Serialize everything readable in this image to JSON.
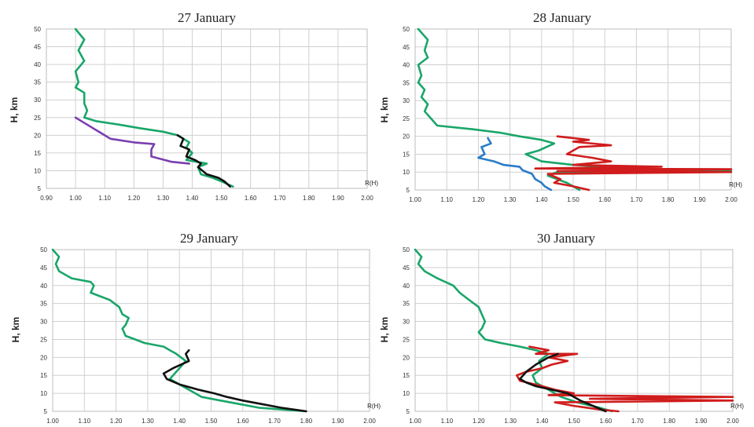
{
  "chart_data": [
    {
      "type": "line",
      "title": "27 January",
      "ylabel": "H, km",
      "xlabel": "R(H)",
      "xlim": [
        0.9,
        2.0
      ],
      "ylim": [
        5,
        50
      ],
      "xticks": [
        "0.90",
        "1.00",
        "1.10",
        "1.20",
        "1.30",
        "1.40",
        "1.50",
        "1.60",
        "1.70",
        "1.80",
        "1.90",
        "2.00"
      ],
      "yticks": [
        "5",
        "10",
        "15",
        "20",
        "25",
        "30",
        "35",
        "40",
        "45",
        "50"
      ],
      "grid": true,
      "series": [
        {
          "color": "#1aa66a",
          "points": [
            [
              1.0,
              50
            ],
            [
              1.03,
              47
            ],
            [
              1.01,
              44
            ],
            [
              1.03,
              41
            ],
            [
              1.0,
              38
            ],
            [
              1.01,
              35
            ],
            [
              1.0,
              33.5
            ],
            [
              1.03,
              32
            ],
            [
              1.03,
              29
            ],
            [
              1.04,
              27
            ],
            [
              1.03,
              25
            ],
            [
              1.07,
              24
            ],
            [
              1.15,
              23
            ],
            [
              1.22,
              22
            ],
            [
              1.3,
              21
            ],
            [
              1.35,
              20
            ],
            [
              1.39,
              18
            ],
            [
              1.38,
              16.5
            ],
            [
              1.4,
              15
            ],
            [
              1.38,
              13
            ],
            [
              1.45,
              12
            ],
            [
              1.42,
              11
            ],
            [
              1.43,
              9
            ],
            [
              1.47,
              8
            ],
            [
              1.5,
              7
            ],
            [
              1.54,
              5.5
            ]
          ]
        },
        {
          "color": "#7a3fae",
          "points": [
            [
              1.0,
              25
            ],
            [
              1.06,
              22
            ],
            [
              1.12,
              19
            ],
            [
              1.2,
              18
            ],
            [
              1.27,
              17.5
            ],
            [
              1.26,
              16
            ],
            [
              1.26,
              14
            ],
            [
              1.33,
              12.5
            ],
            [
              1.39,
              12
            ]
          ]
        },
        {
          "color": "#111111",
          "points": [
            [
              1.35,
              20
            ],
            [
              1.37,
              19
            ],
            [
              1.36,
              17
            ],
            [
              1.39,
              16
            ],
            [
              1.38,
              14
            ],
            [
              1.41,
              13
            ],
            [
              1.43,
              12
            ],
            [
              1.42,
              11
            ],
            [
              1.45,
              9
            ],
            [
              1.49,
              8
            ],
            [
              1.51,
              7
            ],
            [
              1.53,
              5.5
            ]
          ]
        }
      ]
    },
    {
      "type": "line",
      "title": "28 January",
      "ylabel": "H, km",
      "xlabel": "R(H)",
      "xlim": [
        1.0,
        2.0
      ],
      "ylim": [
        5,
        50
      ],
      "xticks": [
        "1.00",
        "1.10",
        "1.20",
        "1.30",
        "1.40",
        "1.50",
        "1.60",
        "1.70",
        "1.80",
        "1.90",
        "2.00"
      ],
      "yticks": [
        "5",
        "10",
        "15",
        "20",
        "25",
        "30",
        "35",
        "40",
        "45",
        "50"
      ],
      "grid": true,
      "series": [
        {
          "color": "#1aa66a",
          "points": [
            [
              1.01,
              50
            ],
            [
              1.04,
              47
            ],
            [
              1.03,
              44
            ],
            [
              1.04,
              42
            ],
            [
              1.01,
              40
            ],
            [
              1.02,
              37
            ],
            [
              1.01,
              35
            ],
            [
              1.03,
              33
            ],
            [
              1.02,
              31
            ],
            [
              1.04,
              29
            ],
            [
              1.03,
              27
            ],
            [
              1.05,
              25
            ],
            [
              1.07,
              23
            ],
            [
              1.18,
              22
            ],
            [
              1.27,
              21
            ],
            [
              1.33,
              20
            ],
            [
              1.4,
              19
            ],
            [
              1.44,
              18
            ],
            [
              1.39,
              16
            ],
            [
              1.35,
              15
            ],
            [
              1.4,
              13
            ],
            [
              1.5,
              12
            ],
            [
              1.7,
              11
            ],
            [
              2.0,
              10.5
            ],
            [
              1.45,
              10
            ],
            [
              1.42,
              9
            ],
            [
              1.48,
              7
            ],
            [
              1.52,
              5
            ]
          ]
        },
        {
          "color": "#d01c1c",
          "points": [
            [
              1.45,
              20
            ],
            [
              1.55,
              19
            ],
            [
              1.5,
              18.5
            ],
            [
              1.62,
              17.5
            ],
            [
              1.52,
              17
            ],
            [
              1.48,
              15
            ],
            [
              1.56,
              14
            ],
            [
              1.62,
              13
            ],
            [
              1.5,
              12
            ],
            [
              1.78,
              11.5
            ],
            [
              1.38,
              11
            ],
            [
              2.0,
              10.8
            ],
            [
              1.45,
              10.3
            ],
            [
              2.0,
              10
            ],
            [
              1.42,
              9.5
            ],
            [
              1.46,
              8
            ],
            [
              1.44,
              7
            ],
            [
              1.5,
              6
            ],
            [
              1.55,
              5
            ]
          ]
        },
        {
          "color": "#2a7cc7",
          "points": [
            [
              1.23,
              19.5
            ],
            [
              1.24,
              18
            ],
            [
              1.21,
              17
            ],
            [
              1.22,
              15
            ],
            [
              1.2,
              14
            ],
            [
              1.25,
              13
            ],
            [
              1.28,
              12
            ],
            [
              1.33,
              11.5
            ],
            [
              1.34,
              10.5
            ],
            [
              1.37,
              9.5
            ],
            [
              1.38,
              8
            ],
            [
              1.4,
              7
            ],
            [
              1.41,
              6
            ],
            [
              1.43,
              5
            ]
          ]
        }
      ]
    },
    {
      "type": "line",
      "title": "29 January",
      "ylabel": "H, km",
      "xlabel": "R(H)",
      "xlim": [
        1.0,
        2.0
      ],
      "ylim": [
        5,
        50
      ],
      "xticks": [
        "1.00",
        "1.10",
        "1.20",
        "1.30",
        "1.40",
        "1.50",
        "1.60",
        "1.70",
        "1.80",
        "1.90",
        "2.00"
      ],
      "yticks": [
        "5",
        "10",
        "15",
        "20",
        "25",
        "30",
        "35",
        "40",
        "45",
        "50"
      ],
      "grid": true,
      "series": [
        {
          "color": "#1aa66a",
          "points": [
            [
              1.0,
              50
            ],
            [
              1.02,
              48
            ],
            [
              1.01,
              46
            ],
            [
              1.02,
              44
            ],
            [
              1.06,
              42
            ],
            [
              1.12,
              41
            ],
            [
              1.13,
              40
            ],
            [
              1.12,
              38
            ],
            [
              1.15,
              37
            ],
            [
              1.18,
              36
            ],
            [
              1.21,
              34
            ],
            [
              1.22,
              32
            ],
            [
              1.24,
              31
            ],
            [
              1.23,
              29
            ],
            [
              1.22,
              28
            ],
            [
              1.23,
              26
            ],
            [
              1.26,
              25
            ],
            [
              1.29,
              24
            ],
            [
              1.35,
              23
            ],
            [
              1.37,
              22
            ],
            [
              1.39,
              21
            ],
            [
              1.42,
              19
            ],
            [
              1.4,
              17
            ],
            [
              1.38,
              15
            ],
            [
              1.37,
              14
            ],
            [
              1.4,
              12.5
            ],
            [
              1.43,
              11
            ],
            [
              1.47,
              9
            ],
            [
              1.53,
              8
            ],
            [
              1.59,
              7
            ],
            [
              1.65,
              6
            ],
            [
              1.8,
              5
            ]
          ]
        },
        {
          "color": "#111111",
          "points": [
            [
              1.43,
              22
            ],
            [
              1.42,
              21
            ],
            [
              1.43,
              19
            ],
            [
              1.38,
              17
            ],
            [
              1.35,
              15.5
            ],
            [
              1.36,
              14
            ],
            [
              1.4,
              12.5
            ],
            [
              1.42,
              12
            ],
            [
              1.46,
              11
            ],
            [
              1.51,
              10
            ],
            [
              1.55,
              9
            ],
            [
              1.6,
              8
            ],
            [
              1.66,
              7
            ],
            [
              1.72,
              6
            ],
            [
              1.8,
              5
            ]
          ]
        }
      ]
    },
    {
      "type": "line",
      "title": "30 January",
      "ylabel": "H, km",
      "xlabel": "R(H)",
      "xlim": [
        1.0,
        2.0
      ],
      "ylim": [
        5,
        50
      ],
      "xticks": [
        "1.00",
        "1.10",
        "1.20",
        "1.30",
        "1.40",
        "1.50",
        "1.60",
        "1.70",
        "1.80",
        "1.90",
        "2.00"
      ],
      "yticks": [
        "5",
        "10",
        "15",
        "20",
        "25",
        "30",
        "35",
        "40",
        "45",
        "50"
      ],
      "grid": true,
      "series": [
        {
          "color": "#1aa66a",
          "points": [
            [
              1.0,
              50
            ],
            [
              1.02,
              48
            ],
            [
              1.01,
              46
            ],
            [
              1.03,
              44
            ],
            [
              1.07,
              42
            ],
            [
              1.12,
              40
            ],
            [
              1.14,
              38
            ],
            [
              1.17,
              36
            ],
            [
              1.2,
              34
            ],
            [
              1.21,
              32
            ],
            [
              1.22,
              30
            ],
            [
              1.21,
              28
            ],
            [
              1.2,
              27
            ],
            [
              1.22,
              25
            ],
            [
              1.27,
              24
            ],
            [
              1.33,
              23
            ],
            [
              1.38,
              22
            ],
            [
              1.42,
              21
            ],
            [
              1.39,
              19
            ],
            [
              1.4,
              17
            ],
            [
              1.37,
              15
            ],
            [
              1.38,
              13
            ],
            [
              1.42,
              11
            ],
            [
              1.46,
              9
            ],
            [
              1.51,
              7.5
            ],
            [
              1.58,
              6
            ],
            [
              1.62,
              5
            ]
          ]
        },
        {
          "color": "#d01c1c",
          "points": [
            [
              1.36,
              23
            ],
            [
              1.42,
              22
            ],
            [
              1.38,
              21
            ],
            [
              1.51,
              21
            ],
            [
              1.42,
              20
            ],
            [
              1.48,
              19
            ],
            [
              1.43,
              18
            ],
            [
              1.4,
              17
            ],
            [
              1.35,
              16
            ],
            [
              1.32,
              15
            ],
            [
              1.33,
              13.5
            ],
            [
              1.4,
              12
            ],
            [
              1.44,
              11
            ],
            [
              1.5,
              10
            ],
            [
              1.42,
              9.5
            ],
            [
              2.0,
              9
            ],
            [
              1.55,
              8.5
            ],
            [
              2.0,
              8
            ],
            [
              1.44,
              7.5
            ],
            [
              1.5,
              6.5
            ],
            [
              1.58,
              5.5
            ],
            [
              1.64,
              5
            ]
          ]
        },
        {
          "color": "#111111",
          "points": [
            [
              1.45,
              21
            ],
            [
              1.42,
              20
            ],
            [
              1.38,
              18
            ],
            [
              1.35,
              16
            ],
            [
              1.33,
              14
            ],
            [
              1.35,
              13
            ],
            [
              1.38,
              12
            ],
            [
              1.43,
              11
            ],
            [
              1.48,
              10
            ],
            [
              1.52,
              8
            ],
            [
              1.56,
              6.5
            ],
            [
              1.6,
              5
            ]
          ]
        }
      ]
    }
  ]
}
